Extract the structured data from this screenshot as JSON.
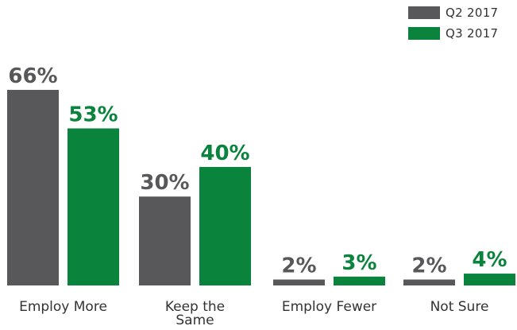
{
  "chart_data": {
    "type": "bar",
    "categories": [
      "Employ More",
      "Keep the Same",
      "Employ Fewer",
      "Not Sure"
    ],
    "category_lines": [
      [
        "Employ More"
      ],
      [
        "Keep the",
        "Same"
      ],
      [
        "Employ Fewer"
      ],
      [
        "Not Sure"
      ]
    ],
    "series": [
      {
        "name": "Q2 2017",
        "values": [
          66,
          30,
          2,
          2
        ],
        "labels": [
          "66%",
          "30%",
          "2%",
          "2%"
        ],
        "color": "#58585a"
      },
      {
        "name": "Q3 2017",
        "values": [
          53,
          40,
          3,
          4
        ],
        "labels": [
          "53%",
          "40%",
          "3%",
          "4%"
        ],
        "color": "#0a843d"
      }
    ],
    "ylim": [
      0,
      66
    ],
    "grid": false,
    "legend_position": "top-right",
    "label_colors": {
      "q2": "#58585a",
      "q3": "#0a843d",
      "axis_text": "#333333"
    }
  }
}
